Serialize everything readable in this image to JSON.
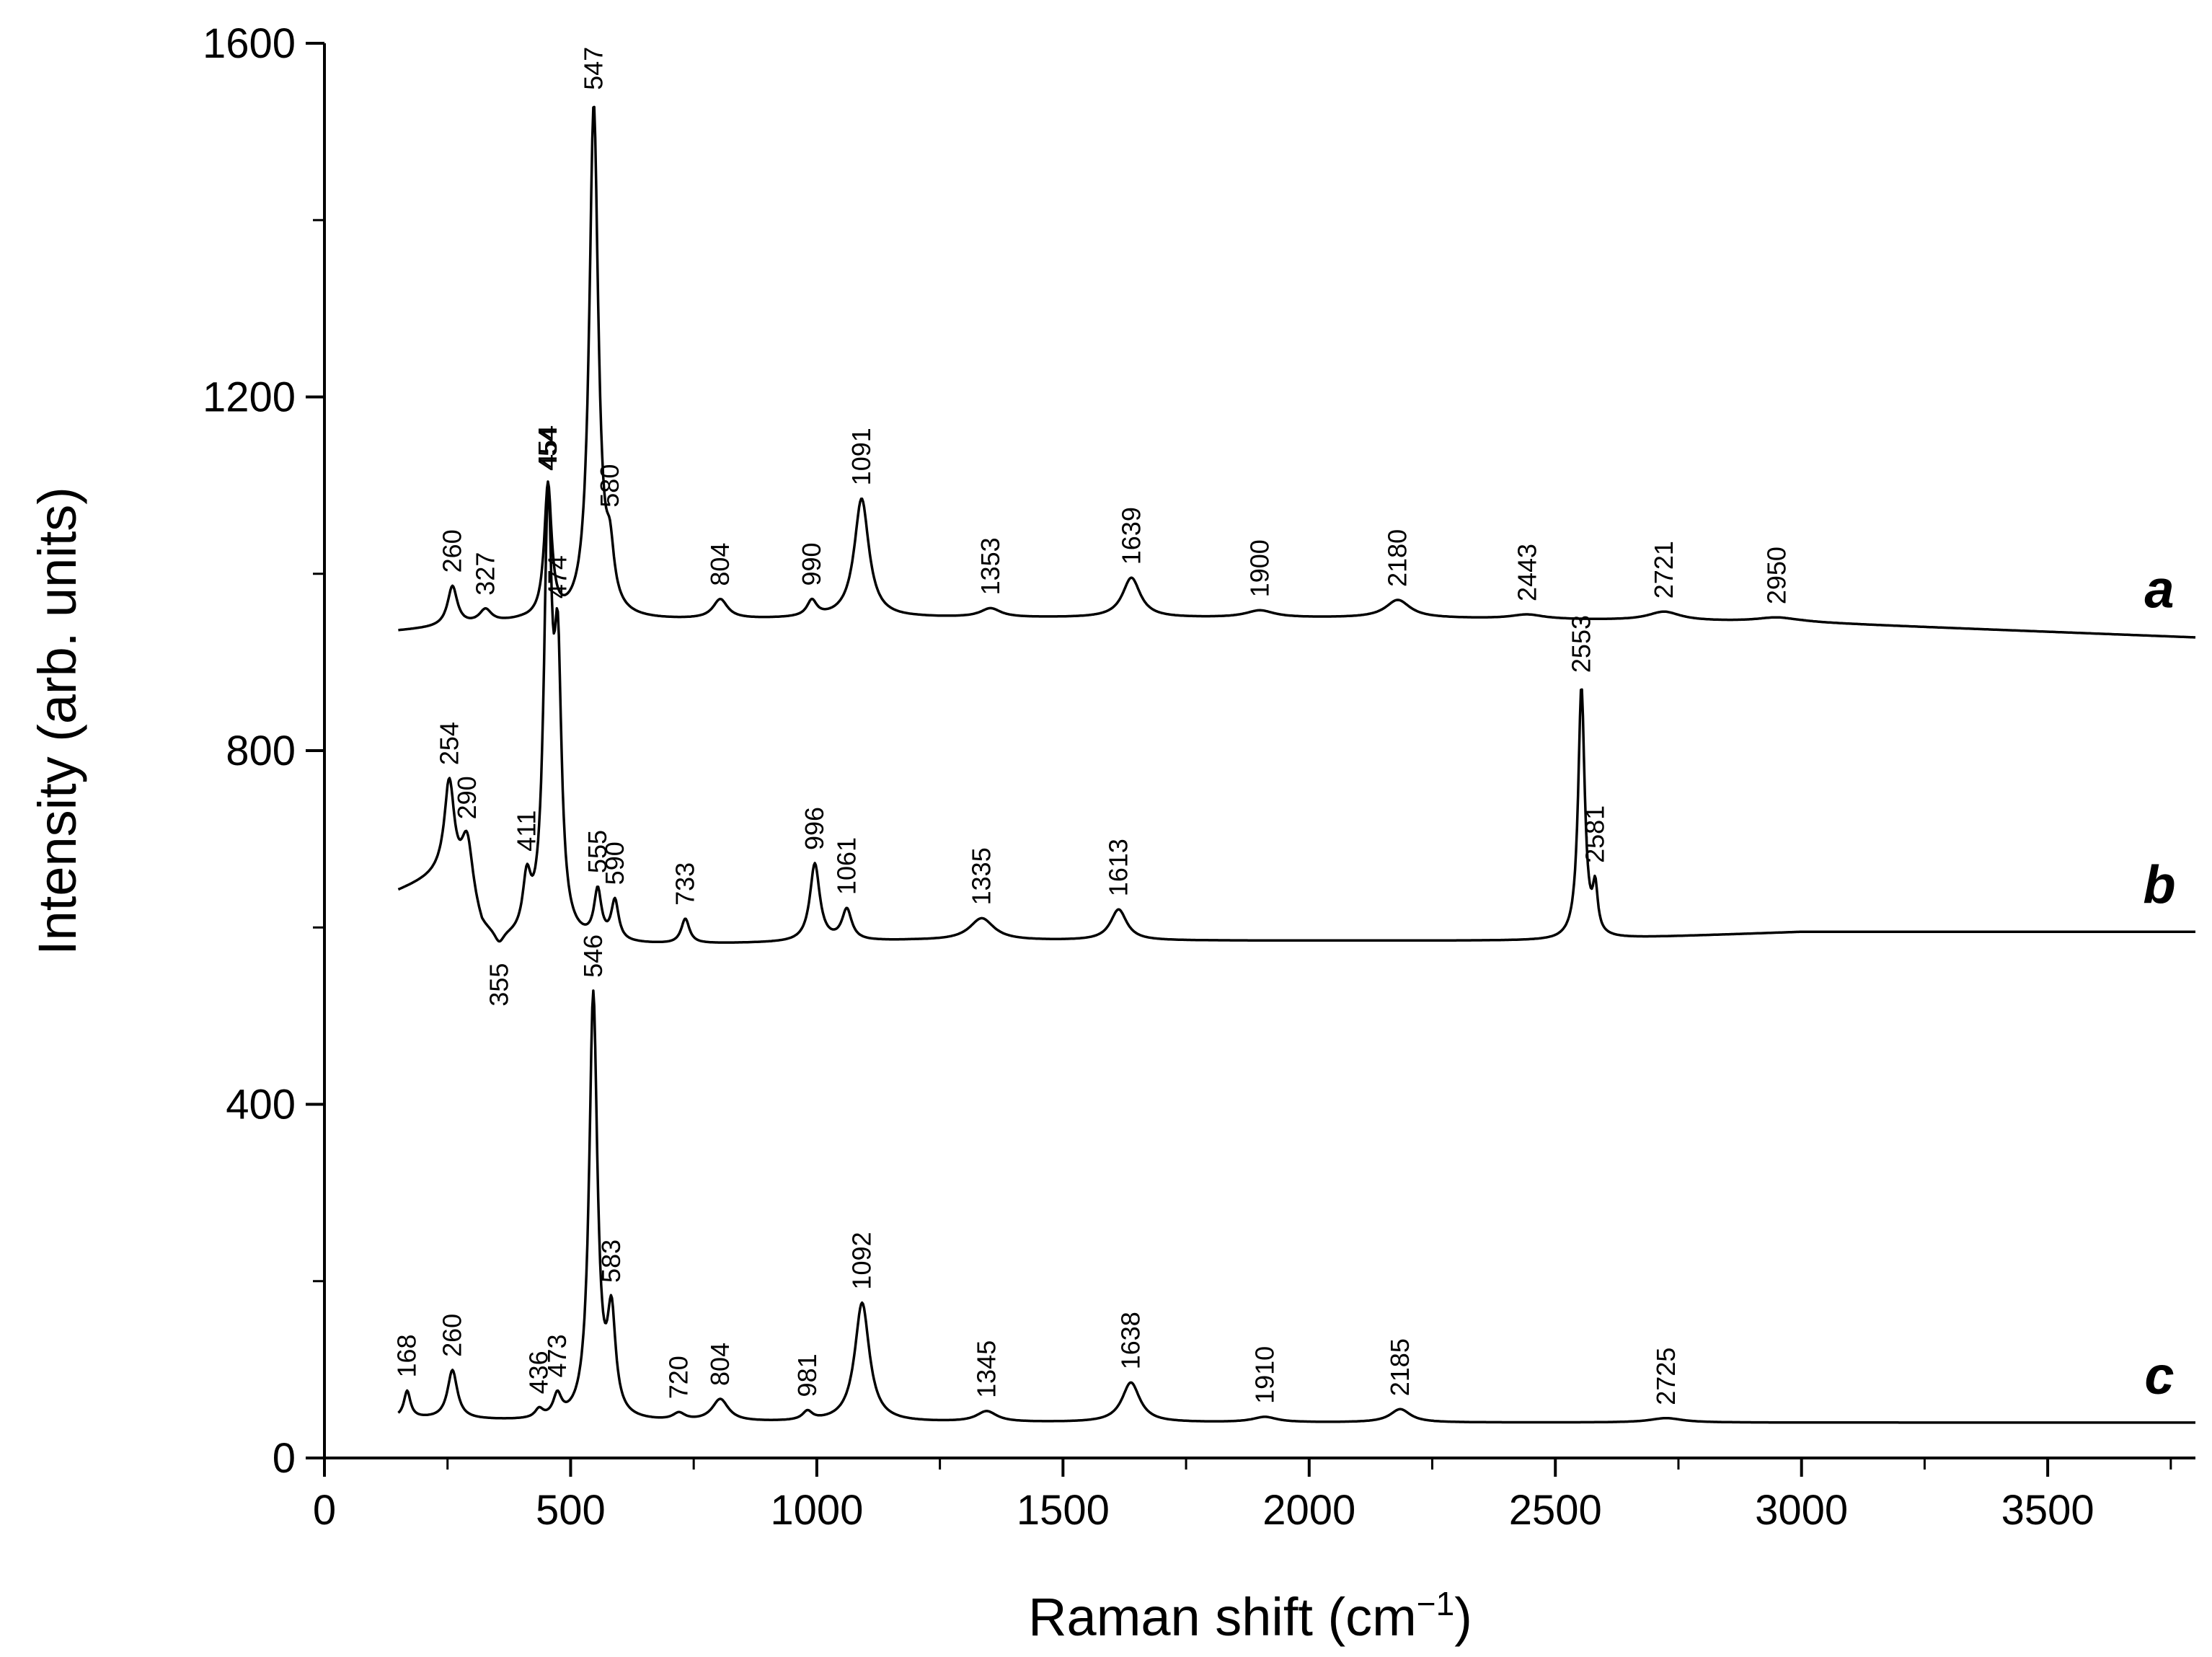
{
  "chart_data": {
    "type": "line",
    "xlabel": "Raman shift (cm",
    "xlabel_superscript": "−1",
    "xlabel_suffix": ")",
    "ylabel": "Intensity (arb. units)",
    "xlim": [
      0,
      3800
    ],
    "ylim": [
      0,
      1600
    ],
    "x_ticks": [
      0,
      500,
      1000,
      1500,
      2000,
      2500,
      3000,
      3500
    ],
    "x_tick_labels": [
      "0",
      "500",
      "1000",
      "1500",
      "2000",
      "2500",
      "3000",
      "3500"
    ],
    "y_ticks": [
      0,
      400,
      800,
      1200,
      1600
    ],
    "y_tick_labels": [
      "0",
      "400",
      "800",
      "1200",
      "1600"
    ],
    "grid": false,
    "series": [
      {
        "name": "a",
        "baseline": [
          [
            150,
            935
          ],
          [
            400,
            945
          ],
          [
            1200,
            950
          ],
          [
            2200,
            950
          ],
          [
            3000,
            945
          ],
          [
            3800,
            928
          ]
        ],
        "peaks": [
          [
            260,
            45,
            12
          ],
          [
            327,
            15,
            15
          ],
          [
            454,
            150,
            9
          ],
          [
            547,
            580,
            11
          ],
          [
            580,
            55,
            10
          ],
          [
            804,
            22,
            18
          ],
          [
            990,
            18,
            12
          ],
          [
            1091,
            135,
            18
          ],
          [
            1353,
            10,
            25
          ],
          [
            1639,
            45,
            22
          ],
          [
            1900,
            8,
            35
          ],
          [
            2180,
            20,
            30
          ],
          [
            2443,
            5,
            40
          ],
          [
            2721,
            10,
            40
          ],
          [
            2950,
            5,
            50
          ]
        ],
        "labels": [
          "260",
          "327",
          "454",
          "547",
          "580",
          "804",
          "990",
          "1091",
          "1353",
          "1639",
          "1900",
          "2180",
          "2443",
          "2721",
          "2950"
        ]
      },
      {
        "name": "b",
        "baseline": [
          [
            150,
            640
          ],
          [
            250,
            660
          ],
          [
            320,
            590
          ],
          [
            400,
            580
          ],
          [
            700,
            580
          ],
          [
            1200,
            585
          ],
          [
            2000,
            585
          ],
          [
            2500,
            585
          ],
          [
            3000,
            595
          ],
          [
            3800,
            595
          ]
        ],
        "peaks": [
          [
            254,
            100,
            12
          ],
          [
            290,
            75,
            15
          ],
          [
            355,
            -15,
            12
          ],
          [
            411,
            60,
            10
          ],
          [
            454,
            470,
            10
          ],
          [
            474,
            280,
            9
          ],
          [
            555,
            55,
            9
          ],
          [
            590,
            45,
            9
          ],
          [
            733,
            28,
            10
          ],
          [
            996,
            88,
            12
          ],
          [
            1061,
            35,
            12
          ],
          [
            1335,
            25,
            30
          ],
          [
            1613,
            35,
            20
          ],
          [
            2553,
            285,
            8
          ],
          [
            2581,
            50,
            6
          ]
        ],
        "labels": [
          "254",
          "290",
          "355",
          "411",
          "454",
          "474",
          "555",
          "590",
          "733",
          "996",
          "1061",
          "1335",
          "1613",
          "2553",
          "2581"
        ]
      },
      {
        "name": "c",
        "baseline": [
          [
            150,
            45
          ],
          [
            500,
            40
          ],
          [
            1500,
            40
          ],
          [
            3800,
            40
          ]
        ],
        "peaks": [
          [
            168,
            30,
            8
          ],
          [
            260,
            55,
            12
          ],
          [
            436,
            10,
            10
          ],
          [
            473,
            25,
            10
          ],
          [
            546,
            480,
            10
          ],
          [
            583,
            110,
            10
          ],
          [
            720,
            8,
            15
          ],
          [
            804,
            25,
            20
          ],
          [
            981,
            10,
            12
          ],
          [
            1092,
            135,
            18
          ],
          [
            1345,
            12,
            25
          ],
          [
            1638,
            45,
            22
          ],
          [
            1910,
            6,
            30
          ],
          [
            2185,
            15,
            25
          ],
          [
            2725,
            5,
            40
          ]
        ],
        "labels": [
          "168",
          "260",
          "436",
          "473",
          "546",
          "583",
          "720",
          "804",
          "981",
          "1092",
          "1345",
          "1638",
          "1910",
          "2185",
          "2725"
        ]
      }
    ]
  }
}
